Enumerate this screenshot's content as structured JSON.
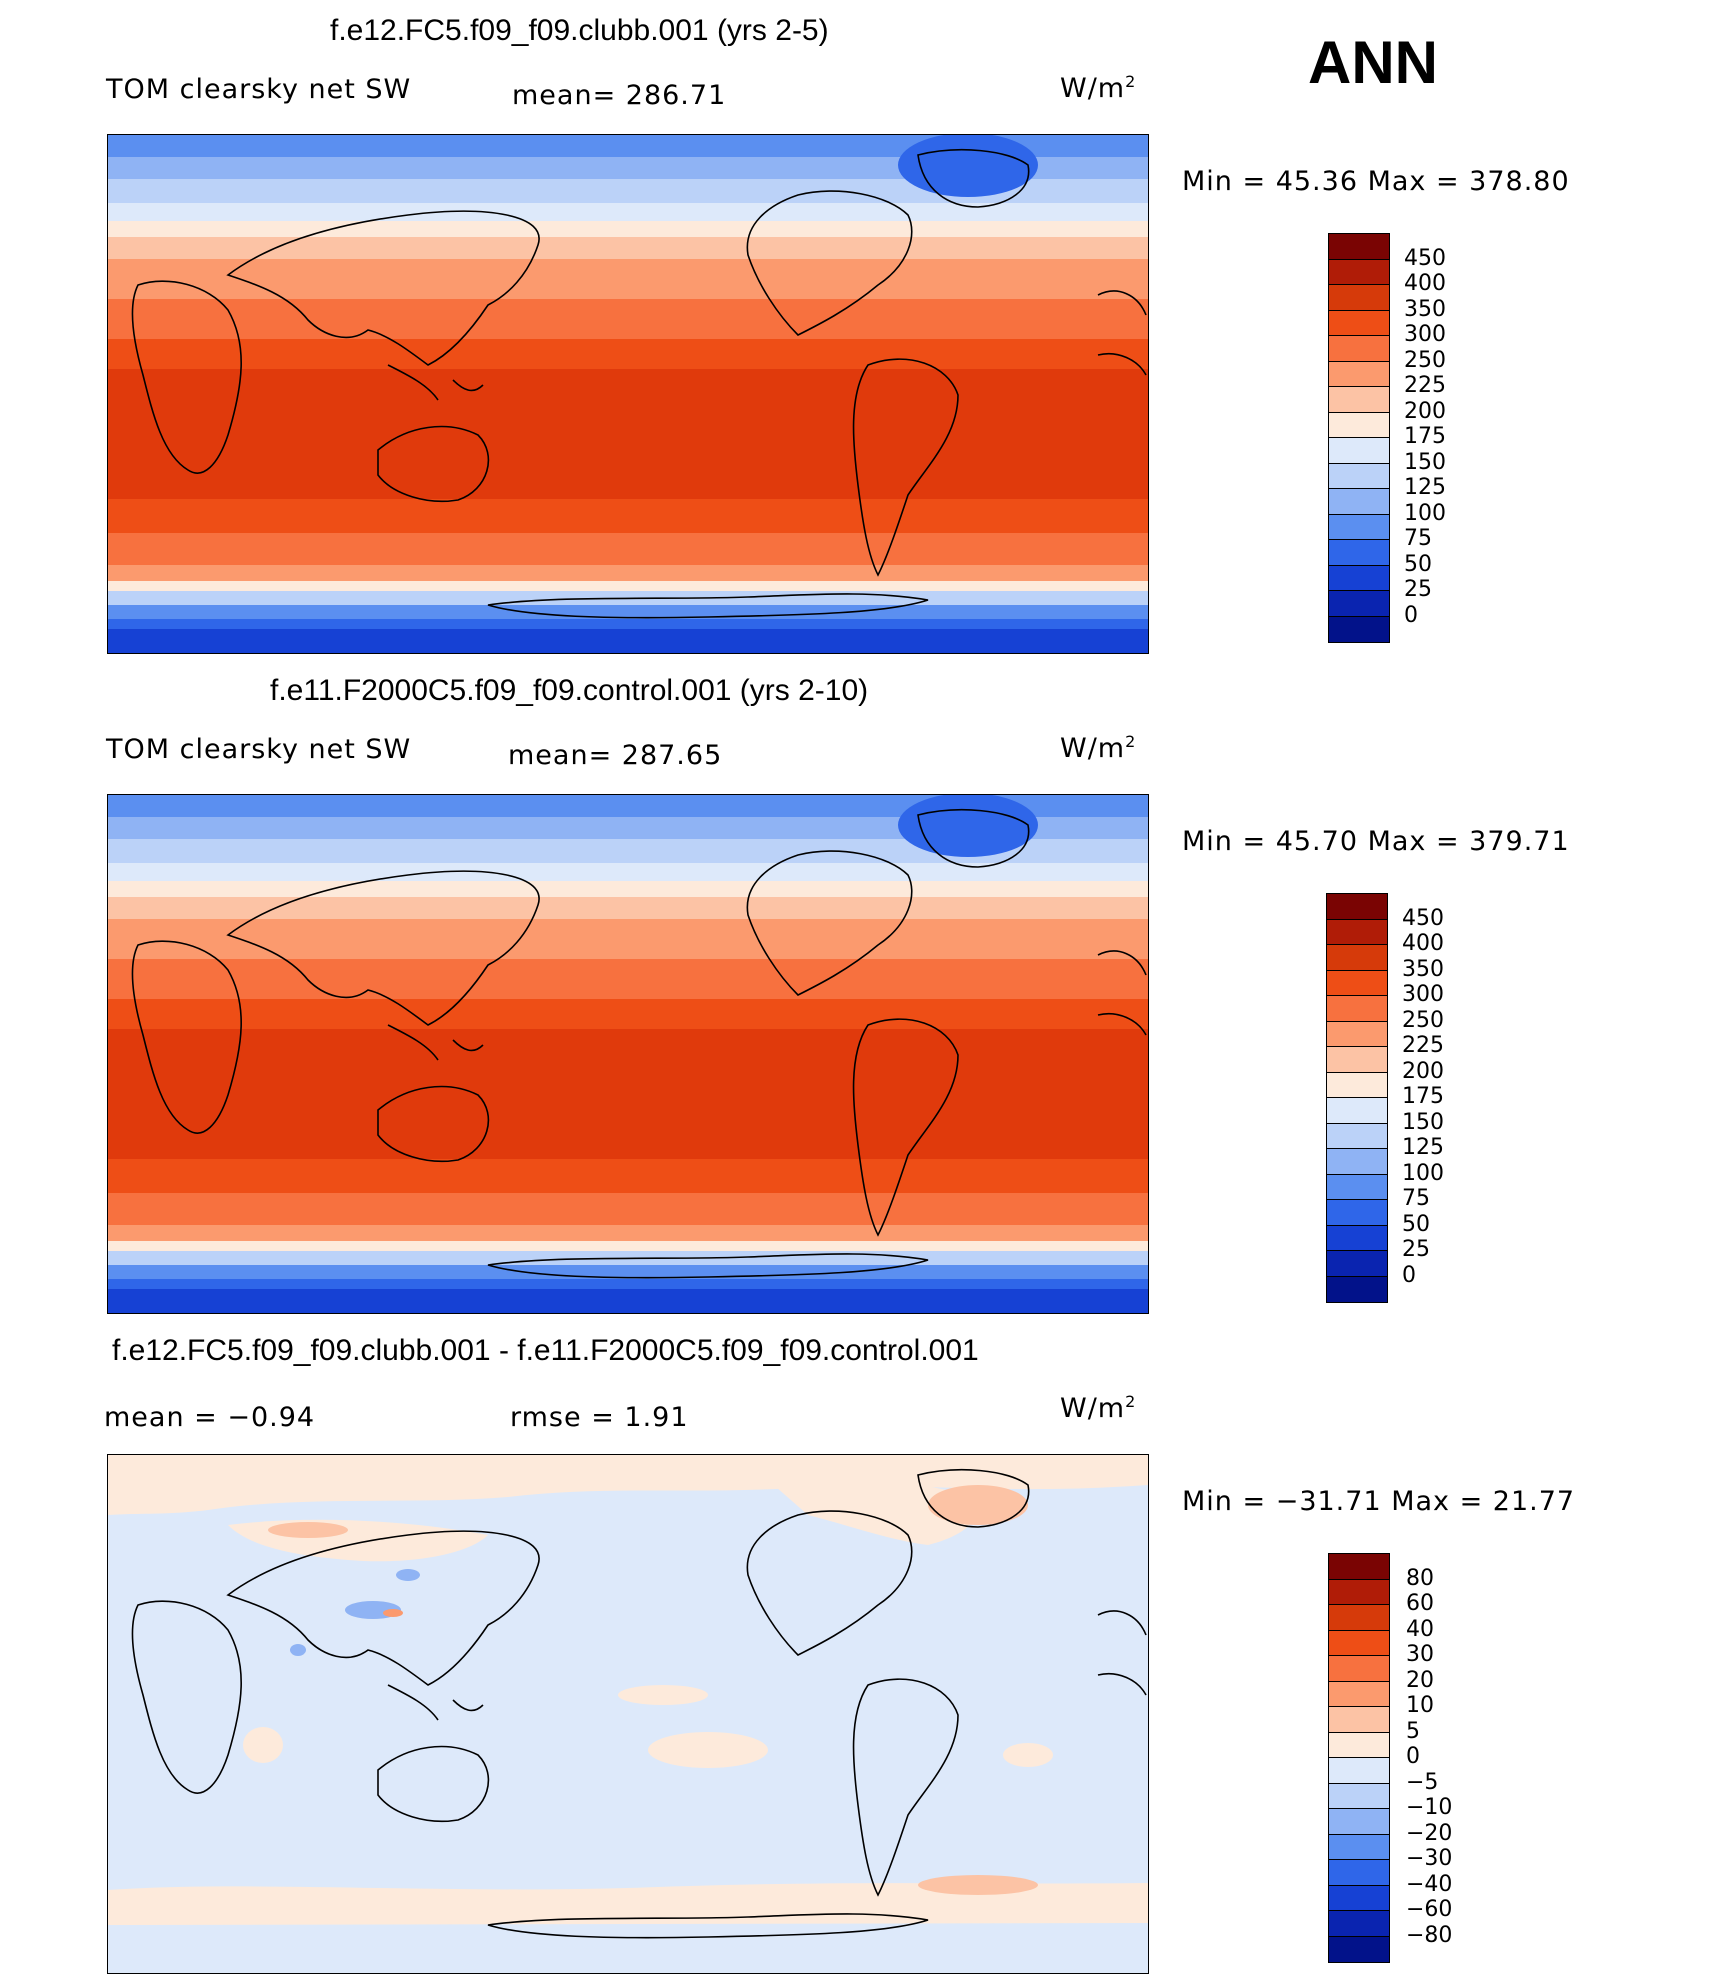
{
  "season": "ANN",
  "units_main": "W/m",
  "units_sup": "2",
  "panels": [
    {
      "title": "f.e12.FC5.f09_f09.clubb.001 (yrs 2-5)",
      "left_label": "TOM clearsky net SW",
      "center_label": "mean= 286.71",
      "min_max": "Min =   45.36 Max = 378.80",
      "variant": "abs"
    },
    {
      "title": "f.e11.F2000C5.f09_f09.control.001 (yrs 2-10)",
      "left_label": "TOM clearsky net SW",
      "center_label": "mean= 287.65",
      "min_max": "Min =   45.70 Max = 379.71",
      "variant": "abs"
    },
    {
      "title": "f.e12.FC5.f09_f09.clubb.001 - f.e11.F2000C5.f09_f09.control.001",
      "left_label": "mean =   −0.94",
      "center_label": "rmse =    1.91",
      "min_max": "Min = −31.71 Max =  21.77",
      "variant": "diff"
    }
  ],
  "colorbar_abs": {
    "labels": [
      "450",
      "400",
      "350",
      "300",
      "250",
      "225",
      "200",
      "175",
      "150",
      "125",
      "100",
      "75",
      "50",
      "25",
      "0"
    ],
    "colors": [
      "#7a0403",
      "#b01c07",
      "#d63a0a",
      "#ee4e16",
      "#f7713f",
      "#fb9a6e",
      "#fcc3a5",
      "#fdeadb",
      "#dde9fa",
      "#bbd2f8",
      "#8fb3f4",
      "#5b8ff0",
      "#2f66e9",
      "#1641d4",
      "#0a24b0",
      "#02128a"
    ]
  },
  "colorbar_diff": {
    "labels": [
      "80",
      "60",
      "40",
      "30",
      "20",
      "10",
      "5",
      "0",
      "−5",
      "−10",
      "−20",
      "−30",
      "−40",
      "−60",
      "−80"
    ],
    "colors": [
      "#7a0403",
      "#b01c07",
      "#d63a0a",
      "#ee4e16",
      "#f7713f",
      "#fb9a6e",
      "#fcc3a5",
      "#fdeadb",
      "#dde9fa",
      "#bbd2f8",
      "#8fb3f4",
      "#5b8ff0",
      "#2f66e9",
      "#1641d4",
      "#0a24b0",
      "#02128a"
    ]
  }
}
